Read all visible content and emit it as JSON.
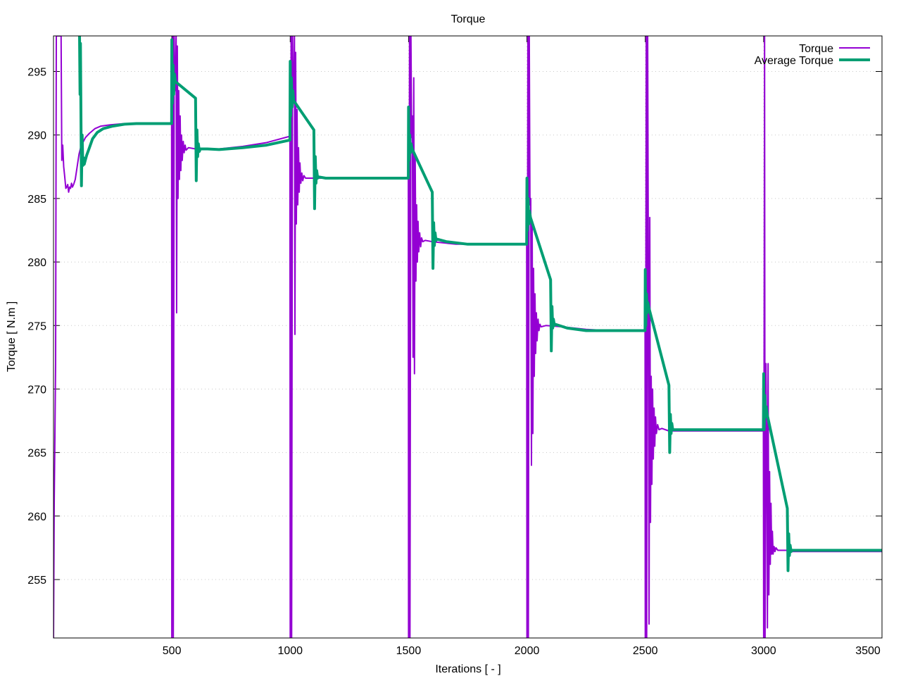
{
  "chart_data": {
    "type": "line",
    "title": "Torque",
    "xlabel": "Iterations [ - ]",
    "ylabel": "Torque [ N.m ]",
    "xlim": [
      0,
      3500
    ],
    "ylim": [
      250.4,
      297.8
    ],
    "xticks": [
      500,
      1000,
      1500,
      2000,
      2500,
      3000,
      3500
    ],
    "yticks": [
      255,
      260,
      265,
      270,
      275,
      280,
      285,
      290,
      295
    ],
    "grid": true,
    "legend_position": "top-right",
    "series": [
      {
        "name": "Torque",
        "color": "#9400d3",
        "line_width": "thin",
        "points": [
          [
            0,
            250.4
          ],
          [
            3,
            261
          ],
          [
            6,
            266.2
          ],
          [
            9,
            272
          ],
          [
            12,
            297.8
          ],
          [
            15,
            297.8
          ],
          [
            18,
            297.8
          ],
          [
            21,
            297.8
          ],
          [
            24,
            297.8
          ],
          [
            27,
            297.8
          ],
          [
            30,
            297.8
          ],
          [
            32,
            297.8
          ],
          [
            35,
            288.0
          ],
          [
            39,
            289.2
          ],
          [
            43,
            287.5
          ],
          [
            47,
            286.8
          ],
          [
            52,
            285.8
          ],
          [
            56,
            285.9
          ],
          [
            60,
            286.1
          ],
          [
            64,
            285.5
          ],
          [
            68,
            285.9
          ],
          [
            72,
            285.8
          ],
          [
            76,
            286.2
          ],
          [
            80,
            285.9
          ],
          [
            85,
            286.1
          ],
          [
            92,
            286.5
          ],
          [
            100,
            287.5
          ],
          [
            108,
            288.5
          ],
          [
            116,
            289.1
          ],
          [
            124,
            289.4
          ],
          [
            135,
            289.8
          ],
          [
            150,
            290.1
          ],
          [
            175,
            290.5
          ],
          [
            200,
            290.7
          ],
          [
            240,
            290.8
          ],
          [
            300,
            290.9
          ],
          [
            400,
            290.9
          ],
          [
            499,
            290.9
          ],
          [
            500,
            250.4
          ],
          [
            504,
            297.8
          ],
          [
            506,
            250.4
          ],
          [
            510,
            297.8
          ],
          [
            512,
            294.0
          ],
          [
            515,
            293.5
          ],
          [
            518,
            297.8
          ],
          [
            520,
            276.0
          ],
          [
            523,
            297.0
          ],
          [
            526,
            285.0
          ],
          [
            529,
            293.5
          ],
          [
            532,
            286.5
          ],
          [
            535,
            291.5
          ],
          [
            538,
            287.2
          ],
          [
            541,
            290.0
          ],
          [
            544,
            288.0
          ],
          [
            548,
            289.5
          ],
          [
            552,
            288.6
          ],
          [
            556,
            289.2
          ],
          [
            560,
            288.8
          ],
          [
            570,
            289.0
          ],
          [
            600,
            288.9
          ],
          [
            650,
            288.9
          ],
          [
            700,
            288.9
          ],
          [
            800,
            289.1
          ],
          [
            900,
            289.4
          ],
          [
            999,
            289.9
          ],
          [
            1000,
            250.4
          ],
          [
            1004,
            297.8
          ],
          [
            1006,
            250.4
          ],
          [
            1010,
            297.8
          ],
          [
            1012,
            293.0
          ],
          [
            1015,
            292.5
          ],
          [
            1018,
            297.8
          ],
          [
            1020,
            274.3
          ],
          [
            1023,
            296.5
          ],
          [
            1026,
            283.0
          ],
          [
            1029,
            292.0
          ],
          [
            1032,
            284.5
          ],
          [
            1035,
            289.0
          ],
          [
            1038,
            285.5
          ],
          [
            1041,
            287.8
          ],
          [
            1045,
            286.2
          ],
          [
            1049,
            287.0
          ],
          [
            1053,
            286.4
          ],
          [
            1058,
            286.8
          ],
          [
            1065,
            286.6
          ],
          [
            1100,
            286.6
          ],
          [
            1200,
            286.6
          ],
          [
            1300,
            286.6
          ],
          [
            1400,
            286.6
          ],
          [
            1499,
            286.6
          ],
          [
            1500,
            250.4
          ],
          [
            1504,
            297.8
          ],
          [
            1506,
            250.4
          ],
          [
            1510,
            297.8
          ],
          [
            1513,
            289.8
          ],
          [
            1516,
            291.5
          ],
          [
            1519,
            272.5
          ],
          [
            1522,
            294.5
          ],
          [
            1525,
            271.2
          ],
          [
            1528,
            288.5
          ],
          [
            1531,
            278.5
          ],
          [
            1534,
            284.5
          ],
          [
            1537,
            280.0
          ],
          [
            1540,
            283.2
          ],
          [
            1543,
            280.8
          ],
          [
            1547,
            282.3
          ],
          [
            1551,
            281.2
          ],
          [
            1555,
            281.9
          ],
          [
            1560,
            281.6
          ],
          [
            1570,
            281.7
          ],
          [
            1600,
            281.6
          ],
          [
            1700,
            281.4
          ],
          [
            1800,
            281.4
          ],
          [
            1900,
            281.4
          ],
          [
            1999,
            281.4
          ],
          [
            2000,
            250.4
          ],
          [
            2004,
            297.8
          ],
          [
            2006,
            250.4
          ],
          [
            2010,
            297.8
          ],
          [
            2013,
            284.5
          ],
          [
            2016,
            285.0
          ],
          [
            2019,
            264.0
          ],
          [
            2022,
            283.0
          ],
          [
            2025,
            266.5
          ],
          [
            2028,
            279.5
          ],
          [
            2031,
            271.0
          ],
          [
            2034,
            277.5
          ],
          [
            2037,
            272.8
          ],
          [
            2040,
            276.0
          ],
          [
            2043,
            273.8
          ],
          [
            2047,
            275.5
          ],
          [
            2051,
            274.6
          ],
          [
            2055,
            275.1
          ],
          [
            2060,
            274.9
          ],
          [
            2080,
            275.0
          ],
          [
            2150,
            274.9
          ],
          [
            2250,
            274.7
          ],
          [
            2350,
            274.6
          ],
          [
            2499,
            274.6
          ],
          [
            2500,
            250.4
          ],
          [
            2504,
            297.8
          ],
          [
            2506,
            250.4
          ],
          [
            2510,
            297.8
          ],
          [
            2513,
            278.5
          ],
          [
            2516,
            251.5
          ],
          [
            2519,
            283.5
          ],
          [
            2522,
            259.5
          ],
          [
            2525,
            271.0
          ],
          [
            2528,
            262.5
          ],
          [
            2531,
            270.0
          ],
          [
            2534,
            264.5
          ],
          [
            2537,
            268.5
          ],
          [
            2540,
            265.5
          ],
          [
            2543,
            267.8
          ],
          [
            2547,
            266.5
          ],
          [
            2552,
            267.2
          ],
          [
            2558,
            266.8
          ],
          [
            2570,
            266.9
          ],
          [
            2600,
            266.7
          ],
          [
            2800,
            266.7
          ],
          [
            2999,
            266.7
          ],
          [
            3000,
            250.4
          ],
          [
            3004,
            297.8
          ],
          [
            3006,
            250.4
          ],
          [
            3010,
            272.0
          ],
          [
            3013,
            265.5
          ],
          [
            3016,
            251.2
          ],
          [
            3019,
            272.0
          ],
          [
            3022,
            253.8
          ],
          [
            3025,
            263.5
          ],
          [
            3028,
            256.2
          ],
          [
            3031,
            261.0
          ],
          [
            3034,
            257.0
          ],
          [
            3037,
            258.8
          ],
          [
            3040,
            257.0
          ],
          [
            3044,
            257.6
          ],
          [
            3048,
            257.2
          ],
          [
            3052,
            257.5
          ],
          [
            3060,
            257.3
          ],
          [
            3100,
            257.3
          ],
          [
            3120,
            257.2
          ],
          [
            3300,
            257.2
          ],
          [
            3500,
            257.2
          ]
        ]
      },
      {
        "name": "Average Torque",
        "color": "#009e73",
        "line_width": "thick",
        "points": [
          [
            110,
            297.8
          ],
          [
            112,
            293.2
          ],
          [
            114,
            297.2
          ],
          [
            118,
            286.0
          ],
          [
            121,
            290.0
          ],
          [
            124,
            287.6
          ],
          [
            127,
            288.2
          ],
          [
            130,
            287.7
          ],
          [
            134,
            288.0
          ],
          [
            140,
            288.4
          ],
          [
            150,
            288.9
          ],
          [
            165,
            289.7
          ],
          [
            185,
            290.2
          ],
          [
            210,
            290.5
          ],
          [
            250,
            290.7
          ],
          [
            300,
            290.85
          ],
          [
            350,
            290.9
          ],
          [
            400,
            290.9
          ],
          [
            499,
            290.9
          ],
          [
            500,
            297.5
          ],
          [
            502,
            292.5
          ],
          [
            505,
            295.5
          ],
          [
            508,
            293.2
          ],
          [
            511,
            294.8
          ],
          [
            515,
            294.2
          ],
          [
            600,
            292.9
          ],
          [
            603,
            286.4
          ],
          [
            606,
            290.4
          ],
          [
            609,
            288.3
          ],
          [
            612,
            289.3
          ],
          [
            616,
            288.7
          ],
          [
            620,
            288.9
          ],
          [
            650,
            288.9
          ],
          [
            700,
            288.85
          ],
          [
            800,
            289.0
          ],
          [
            900,
            289.2
          ],
          [
            999,
            289.6
          ],
          [
            1000,
            295.8
          ],
          [
            1002,
            291.5
          ],
          [
            1005,
            294.5
          ],
          [
            1008,
            292.2
          ],
          [
            1011,
            293.5
          ],
          [
            1015,
            292.7
          ],
          [
            1100,
            290.4
          ],
          [
            1103,
            284.2
          ],
          [
            1106,
            288.3
          ],
          [
            1109,
            286.2
          ],
          [
            1112,
            287.2
          ],
          [
            1116,
            286.6
          ],
          [
            1120,
            286.7
          ],
          [
            1150,
            286.6
          ],
          [
            1300,
            286.6
          ],
          [
            1499,
            286.6
          ],
          [
            1500,
            292.2
          ],
          [
            1502,
            288.0
          ],
          [
            1505,
            290.0
          ],
          [
            1508,
            288.6
          ],
          [
            1511,
            289.3
          ],
          [
            1515,
            288.9
          ],
          [
            1600,
            285.5
          ],
          [
            1603,
            279.5
          ],
          [
            1606,
            283.1
          ],
          [
            1609,
            281.3
          ],
          [
            1612,
            282.3
          ],
          [
            1616,
            281.7
          ],
          [
            1620,
            281.8
          ],
          [
            1660,
            281.6
          ],
          [
            1750,
            281.4
          ],
          [
            1850,
            281.4
          ],
          [
            1999,
            281.4
          ],
          [
            2000,
            286.6
          ],
          [
            2002,
            282.5
          ],
          [
            2005,
            285.0
          ],
          [
            2008,
            283.0
          ],
          [
            2011,
            284.0
          ],
          [
            2015,
            283.5
          ],
          [
            2100,
            278.6
          ],
          [
            2103,
            273.0
          ],
          [
            2106,
            276.5
          ],
          [
            2109,
            274.8
          ],
          [
            2112,
            275.5
          ],
          [
            2116,
            275.0
          ],
          [
            2120,
            275.1
          ],
          [
            2170,
            274.8
          ],
          [
            2250,
            274.6
          ],
          [
            2350,
            274.6
          ],
          [
            2499,
            274.6
          ],
          [
            2500,
            279.4
          ],
          [
            2502,
            275.0
          ],
          [
            2505,
            277.5
          ],
          [
            2508,
            276.0
          ],
          [
            2511,
            276.8
          ],
          [
            2515,
            276.4
          ],
          [
            2600,
            270.3
          ],
          [
            2603,
            265.0
          ],
          [
            2606,
            268.0
          ],
          [
            2609,
            266.5
          ],
          [
            2612,
            267.3
          ],
          [
            2616,
            266.8
          ],
          [
            2620,
            266.8
          ],
          [
            2700,
            266.8
          ],
          [
            2999,
            266.8
          ],
          [
            3000,
            271.2
          ],
          [
            3002,
            266.8
          ],
          [
            3005,
            269.5
          ],
          [
            3008,
            267.8
          ],
          [
            3011,
            268.6
          ],
          [
            3015,
            268.0
          ],
          [
            3100,
            260.6
          ],
          [
            3103,
            255.7
          ],
          [
            3106,
            258.6
          ],
          [
            3109,
            256.9
          ],
          [
            3112,
            257.7
          ],
          [
            3116,
            257.2
          ],
          [
            3120,
            257.3
          ],
          [
            3200,
            257.3
          ],
          [
            3500,
            257.3
          ]
        ]
      }
    ]
  }
}
